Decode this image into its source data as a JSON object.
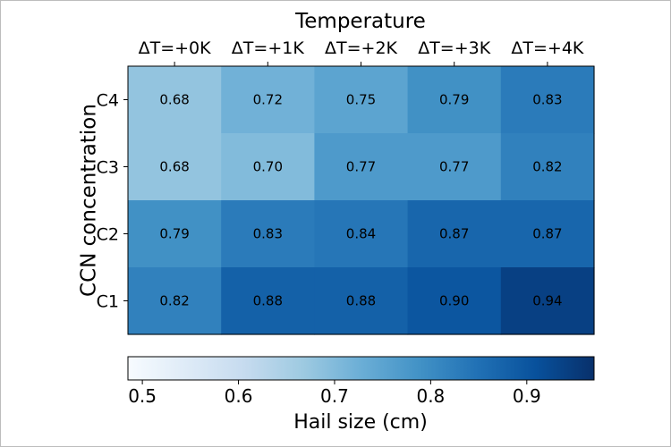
{
  "chart_data": {
    "type": "heatmap",
    "title": "Temperature",
    "xlabel": "Temperature",
    "ylabel": "CCN concentration",
    "x_categories": [
      "ΔT=+0K",
      "ΔT=+1K",
      "ΔT=+2K",
      "ΔT=+3K",
      "ΔT=+4K"
    ],
    "y_categories": [
      "C4",
      "C3",
      "C2",
      "C1"
    ],
    "values": [
      [
        0.68,
        0.72,
        0.75,
        0.79,
        0.83
      ],
      [
        0.68,
        0.7,
        0.77,
        0.77,
        0.82
      ],
      [
        0.79,
        0.83,
        0.84,
        0.87,
        0.87
      ],
      [
        0.82,
        0.88,
        0.88,
        0.9,
        0.94
      ]
    ],
    "value_labels": [
      [
        "0.68",
        "0.72",
        "0.75",
        "0.79",
        "0.83"
      ],
      [
        "0.68",
        "0.70",
        "0.77",
        "0.77",
        "0.82"
      ],
      [
        "0.79",
        "0.83",
        "0.84",
        "0.87",
        "0.87"
      ],
      [
        "0.82",
        "0.88",
        "0.88",
        "0.90",
        "0.94"
      ]
    ],
    "colormap": "Blues",
    "colorbar": {
      "label": "Hail size (cm)",
      "range": [
        0.485,
        0.97
      ],
      "ticks": [
        0.5,
        0.6,
        0.7,
        0.8,
        0.9
      ],
      "tick_labels": [
        "0.5",
        "0.6",
        "0.7",
        "0.8",
        "0.9"
      ],
      "orientation": "horizontal"
    },
    "grid": false
  }
}
